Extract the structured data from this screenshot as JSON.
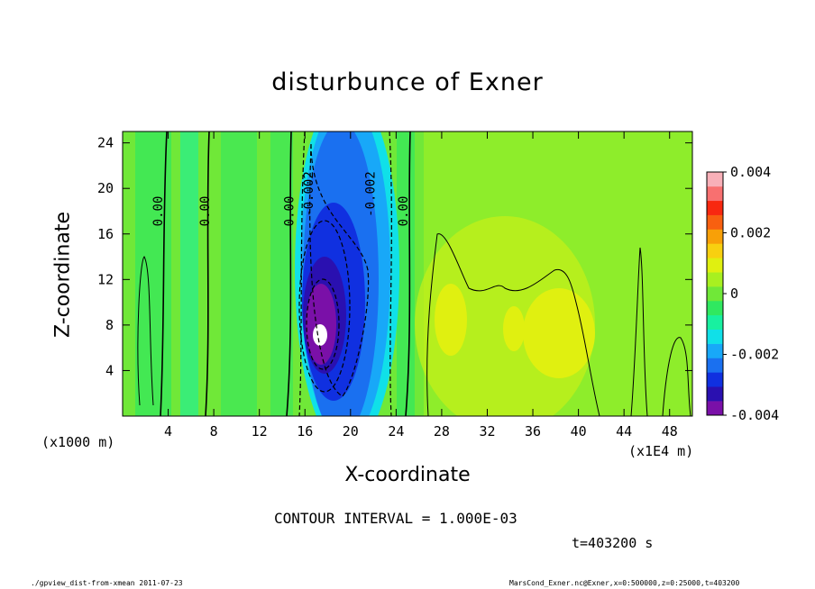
{
  "title": "disturbunce of Exner",
  "footer": {
    "left": "./gpview_dist-from-xmean   2011-07-23",
    "right": "MarsCond_Exner.nc@Exner,x=0:500000,z=0:25000,t=403200"
  },
  "contour_interval": "CONTOUR INTERVAL = 1.000E-03",
  "time_label": "t=403200 s",
  "chart_data": {
    "type": "heatmap",
    "title": "disturbunce of Exner",
    "xlabel": "X-coordinate",
    "ylabel": "Z-coordinate",
    "x_unit": "(x1000 m)",
    "x_scale": "(x1E4 m)",
    "xlim": [
      0,
      50
    ],
    "ylim": [
      0,
      25
    ],
    "x_ticks": [
      4,
      8,
      12,
      16,
      20,
      24,
      28,
      32,
      36,
      40,
      44,
      48
    ],
    "y_ticks": [
      4,
      8,
      12,
      16,
      20,
      24
    ],
    "colorbar": {
      "min": -0.004,
      "max": 0.004,
      "tick_values": [
        0.004,
        0.002,
        0,
        -0.002,
        -0.004
      ],
      "tick_labels": [
        "0.004",
        "0.002",
        "0",
        "-0.002",
        "-0.004"
      ],
      "colors": [
        "#7a10a8",
        "#2a10b0",
        "#1030e0",
        "#1a70f0",
        "#18a8f8",
        "#10e0e8",
        "#18f0a0",
        "#30e860",
        "#70e838",
        "#a8f020",
        "#e0f010",
        "#f8d010",
        "#f8a008",
        "#f86010",
        "#f82810",
        "#f87070",
        "#f8b0b8"
      ]
    },
    "contour_labels": [
      {
        "text": "0.00",
        "x": 3.5,
        "z": 18
      },
      {
        "text": "0.00",
        "x": 7.6,
        "z": 18
      },
      {
        "text": "0.00",
        "x": 15.0,
        "z": 18
      },
      {
        "text": "-0.002",
        "x": 16.7,
        "z": 19.5
      },
      {
        "text": "-0.002",
        "x": 22.1,
        "z": 19.5
      },
      {
        "text": "0.00",
        "x": 25.0,
        "z": 18
      }
    ],
    "features": {
      "min_center": {
        "x": 17.8,
        "z": 7.5,
        "value": "< -0.004"
      },
      "negative_trough_x_range": [
        14.5,
        23.5
      ],
      "positive_band_x_range": [
        27,
        43
      ]
    }
  }
}
